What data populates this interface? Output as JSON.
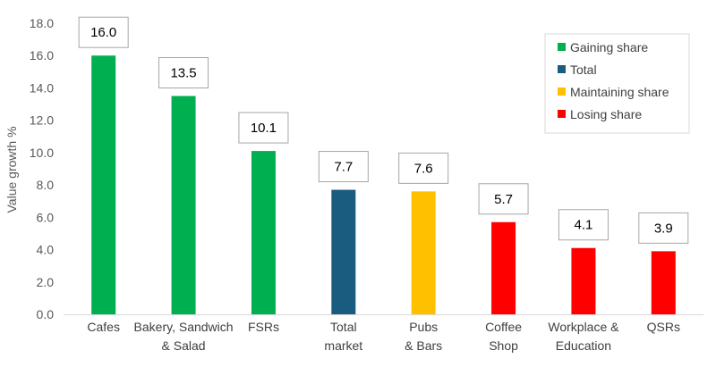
{
  "chart_data": {
    "type": "bar",
    "ylabel": "Value growth %",
    "xlabel": "",
    "ylim": [
      0,
      18
    ],
    "yticks": [
      0,
      2,
      4,
      6,
      8,
      10,
      12,
      14,
      16,
      18
    ],
    "grid": false,
    "legend_position": "top-right",
    "bars": [
      {
        "label_lines": [
          "Cafes"
        ],
        "value": 16.0,
        "label": "16.0",
        "group": "Gaining share"
      },
      {
        "label_lines": [
          "Bakery, Sandwich",
          "& Salad"
        ],
        "value": 13.5,
        "label": "13.5",
        "group": "Gaining share"
      },
      {
        "label_lines": [
          "FSRs"
        ],
        "value": 10.1,
        "label": "10.1",
        "group": "Gaining share"
      },
      {
        "label_lines": [
          "Total",
          "market"
        ],
        "value": 7.7,
        "label": "7.7",
        "group": "Total"
      },
      {
        "label_lines": [
          "Pubs",
          "& Bars"
        ],
        "value": 7.6,
        "label": "7.6",
        "group": "Maintaining share"
      },
      {
        "label_lines": [
          "Coffee",
          "Shop"
        ],
        "value": 5.7,
        "label": "5.7",
        "group": "Losing share"
      },
      {
        "label_lines": [
          "Workplace &",
          "Education"
        ],
        "value": 4.1,
        "label": "4.1",
        "group": "Losing share"
      },
      {
        "label_lines": [
          "QSRs"
        ],
        "value": 3.9,
        "label": "3.9",
        "group": "Losing share"
      }
    ],
    "legend": [
      {
        "name": "Gaining share",
        "color": "#00b050"
      },
      {
        "name": "Total",
        "color": "#1a5b80"
      },
      {
        "name": "Maintaining share",
        "color": "#ffc000"
      },
      {
        "name": "Losing share",
        "color": "#ff0000"
      }
    ]
  }
}
